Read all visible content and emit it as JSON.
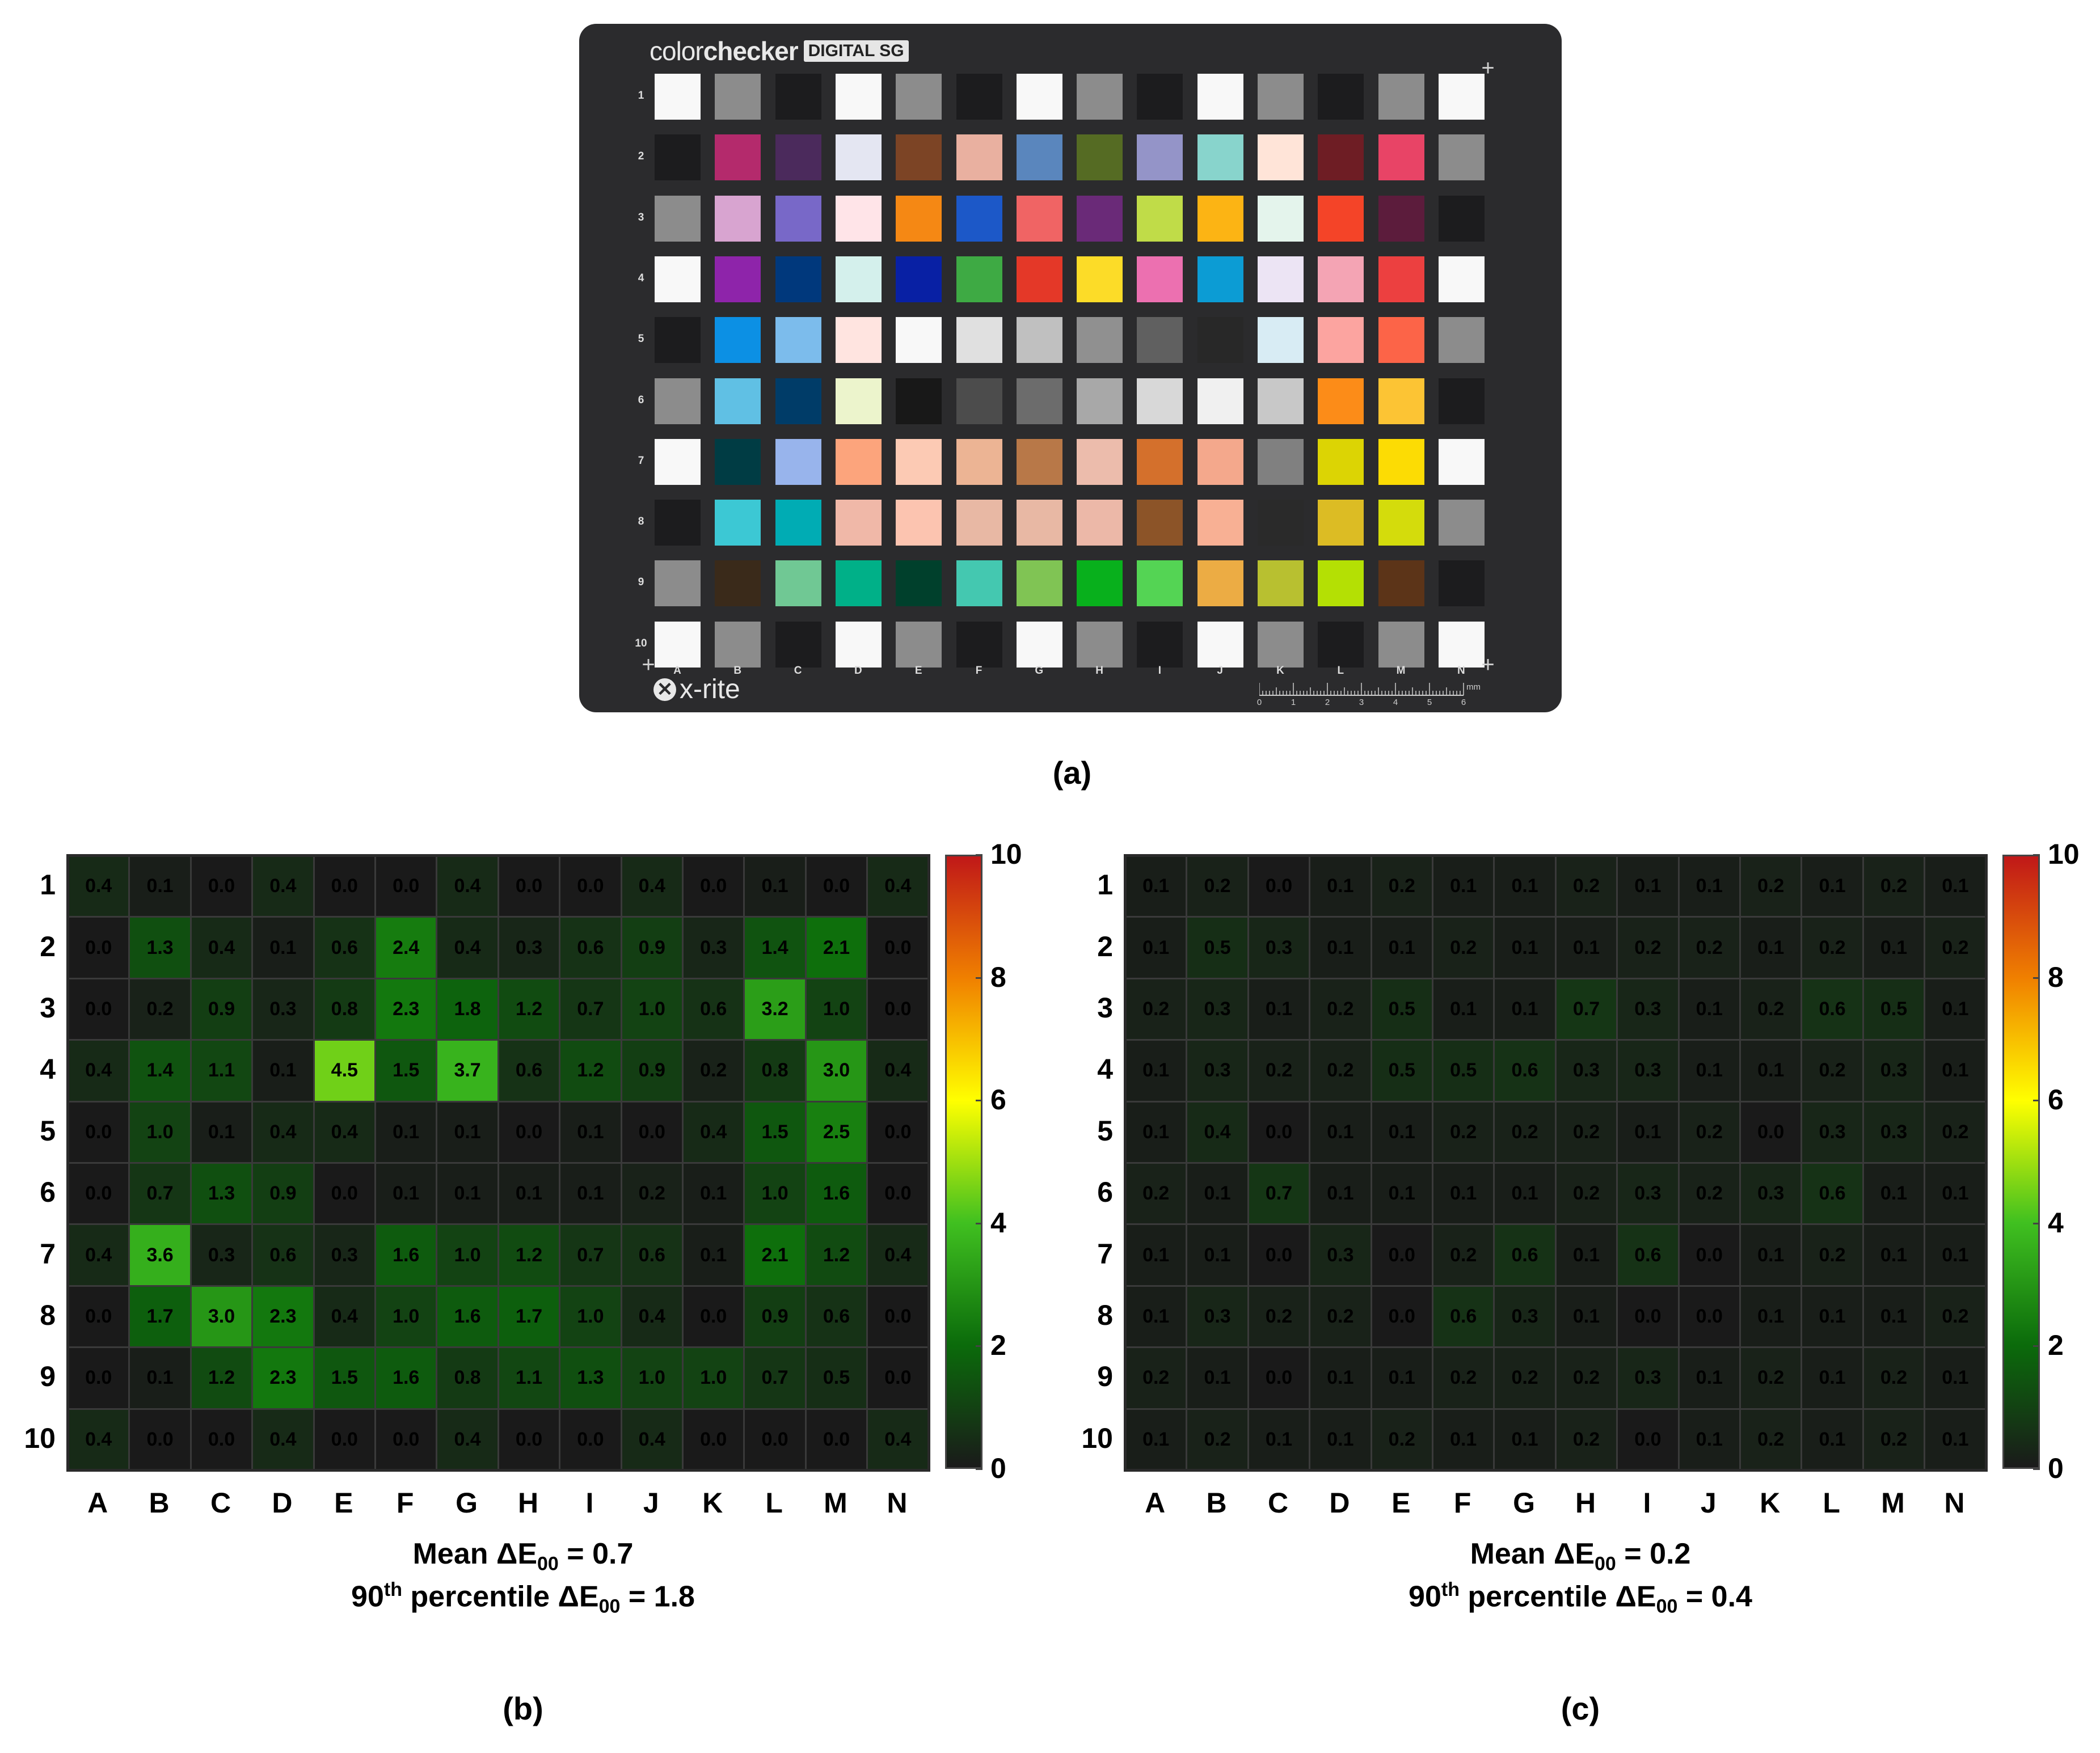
{
  "panel_a": {
    "brand_light": "color",
    "brand_bold": "checker",
    "brand_tag": "DIGITAL SG",
    "maker_logo": "x-rite",
    "row_labels": [
      "1",
      "2",
      "3",
      "4",
      "5",
      "6",
      "7",
      "8",
      "9",
      "10"
    ],
    "col_labels": [
      "A",
      "B",
      "C",
      "D",
      "E",
      "F",
      "G",
      "H",
      "I",
      "J",
      "K",
      "L",
      "M",
      "N"
    ],
    "ruler_labels": [
      "0",
      "1",
      "2",
      "3",
      "4",
      "5",
      "6"
    ],
    "ruler_unit": "mm",
    "patch_colors": [
      [
        "#f8f8f8",
        "#8c8c8c",
        "#1c1c1e",
        "#f8f8f8",
        "#8c8c8c",
        "#1c1c1e",
        "#f8f8f8",
        "#8c8c8c",
        "#1c1c1e",
        "#f8f8f8",
        "#8c8c8c",
        "#1c1c1e",
        "#8c8c8c",
        "#f8f8f8"
      ],
      [
        "#1c1c1e",
        "#b42a6c",
        "#4b2a5c",
        "#e4e6f2",
        "#7c4425",
        "#e9b0a0",
        "#5a86bd",
        "#556b23",
        "#9494c8",
        "#88d4cc",
        "#ffe4d8",
        "#6e1d24",
        "#e84466",
        "#8c8c8c"
      ],
      [
        "#8c8c8c",
        "#d8a4d0",
        "#7868c8",
        "#ffe4e8",
        "#f58814",
        "#1c58c8",
        "#f06464",
        "#6a2a78",
        "#c0dc48",
        "#fcb414",
        "#e4f4ec",
        "#f44428",
        "#5c1c3c",
        "#1c1c1e"
      ],
      [
        "#f8f8f8",
        "#8e24aa",
        "#00387c",
        "#d4f0ec",
        "#0820a4",
        "#3eaa44",
        "#e43828",
        "#fcdc28",
        "#ec70b0",
        "#0c9cd4",
        "#ece4f4",
        "#f4a4b4",
        "#ec4040",
        "#f8f8f8"
      ],
      [
        "#1c1c1e",
        "#0c90e4",
        "#7cbcec",
        "#ffe4e0",
        "#f8f8f8",
        "#e0e0e0",
        "#c0c0c0",
        "#909090",
        "#606060",
        "#282828",
        "#d8ecf4",
        "#fca4a0",
        "#fc6448",
        "#8c8c8c"
      ],
      [
        "#8c8c8c",
        "#60c0e4",
        "#003c68",
        "#ecf4cc",
        "#181818",
        "#4c4c4c",
        "#6c6c6c",
        "#a8a8a8",
        "#d8d8d8",
        "#f0f0f0",
        "#c8c8c8",
        "#fc8c18",
        "#fcc434",
        "#1c1c1e"
      ],
      [
        "#f8f8f8",
        "#003c44",
        "#98b4ec",
        "#fca47c",
        "#fccab4",
        "#ecb494",
        "#b87848",
        "#ecbcac",
        "#d4702c",
        "#f4a88c",
        "#808080",
        "#dcd404",
        "#fcdc04",
        "#f8f8f8"
      ],
      [
        "#1c1c1e",
        "#3cc8d4",
        "#00acb4",
        "#f0b8a8",
        "#fcc4b0",
        "#e8b8a4",
        "#e8b8a4",
        "#ecb8a8",
        "#8c5428",
        "#f8b094",
        "#2a2a2a",
        "#dcbc24",
        "#d4dc0c",
        "#8c8c8c"
      ],
      [
        "#8c8c8c",
        "#3a2a1a",
        "#70c894",
        "#00b088",
        "#00402c",
        "#44c8b0",
        "#80c454",
        "#08b01c",
        "#54d454",
        "#ecac44",
        "#b8c030",
        "#b4e004",
        "#5c3418",
        "#1c1c1e"
      ],
      [
        "#f8f8f8",
        "#8c8c8c",
        "#1c1c1e",
        "#f8f8f8",
        "#8c8c8c",
        "#1c1c1e",
        "#f8f8f8",
        "#8c8c8c",
        "#1c1c1e",
        "#f8f8f8",
        "#8c8c8c",
        "#1c1c1e",
        "#8c8c8c",
        "#f8f8f8"
      ]
    ],
    "caption": "(a)"
  },
  "colorbar": {
    "colors": [
      "#1a1a1a",
      "#0b6b0b",
      "#40c020",
      "#ffff00",
      "#f08000",
      "#c01818"
    ],
    "ticks": [
      "0",
      "2",
      "4",
      "6",
      "8",
      "10"
    ]
  },
  "chart_data": [
    {
      "type": "heatmap",
      "row_labels": [
        "1",
        "2",
        "3",
        "4",
        "5",
        "6",
        "7",
        "8",
        "9",
        "10"
      ],
      "col_labels": [
        "A",
        "B",
        "C",
        "D",
        "E",
        "F",
        "G",
        "H",
        "I",
        "J",
        "K",
        "L",
        "M",
        "N"
      ],
      "zlim": [
        0,
        10
      ],
      "values": [
        [
          0.4,
          0.1,
          0.0,
          0.4,
          0.0,
          0.0,
          0.4,
          0.0,
          0.0,
          0.4,
          0.0,
          0.1,
          0.0,
          0.4
        ],
        [
          0.0,
          1.3,
          0.4,
          0.1,
          0.6,
          2.4,
          0.4,
          0.3,
          0.6,
          0.9,
          0.3,
          1.4,
          2.1,
          0.0
        ],
        [
          0.0,
          0.2,
          0.9,
          0.3,
          0.8,
          2.3,
          1.8,
          1.2,
          0.7,
          1.0,
          0.6,
          3.2,
          1.0,
          0.0
        ],
        [
          0.4,
          1.4,
          1.1,
          0.1,
          4.5,
          1.5,
          3.7,
          0.6,
          1.2,
          0.9,
          0.2,
          0.8,
          3.0,
          0.4
        ],
        [
          0.0,
          1.0,
          0.1,
          0.4,
          0.4,
          0.1,
          0.1,
          0.0,
          0.1,
          0.0,
          0.4,
          1.5,
          2.5,
          0.0
        ],
        [
          0.0,
          0.7,
          1.3,
          0.9,
          0.0,
          0.1,
          0.1,
          0.1,
          0.1,
          0.2,
          0.1,
          1.0,
          1.6,
          0.0
        ],
        [
          0.4,
          3.6,
          0.3,
          0.6,
          0.3,
          1.6,
          1.0,
          1.2,
          0.7,
          0.6,
          0.1,
          2.1,
          1.2,
          0.4
        ],
        [
          0.0,
          1.7,
          3.0,
          2.3,
          0.4,
          1.0,
          1.6,
          1.7,
          1.0,
          0.4,
          0.0,
          0.9,
          0.6,
          0.0
        ],
        [
          0.0,
          0.1,
          1.2,
          2.3,
          1.5,
          1.6,
          0.8,
          1.1,
          1.3,
          1.0,
          1.0,
          0.7,
          0.5,
          0.0
        ],
        [
          0.4,
          0.0,
          0.0,
          0.4,
          0.0,
          0.0,
          0.4,
          0.0,
          0.0,
          0.4,
          0.0,
          0.0,
          0.0,
          0.4
        ]
      ],
      "value_labels": [
        [
          "0.4",
          "0.1",
          "0.0",
          "0.4",
          "0.0",
          "0.0",
          "0.4",
          "0.0",
          "0.0",
          "0.4",
          "0.0",
          "0.1",
          "0.0",
          "0.4"
        ],
        [
          "0.0",
          "1.3",
          "0.4",
          "0.1",
          "0.6",
          "2.4",
          "0.4",
          "0.3",
          "0.6",
          "0.9",
          "0.3",
          "1.4",
          "2.1",
          "0.0"
        ],
        [
          "0.0",
          "0.2",
          "0.9",
          "0.3",
          "0.8",
          "2.3",
          "1.8",
          "1.2",
          "0.7",
          "1.0",
          "0.6",
          "3.2",
          "1.0",
          "0.0"
        ],
        [
          "0.4",
          "1.4",
          "1.1",
          "0.1",
          "4.5",
          "1.5",
          "3.7",
          "0.6",
          "1.2",
          "0.9",
          "0.2",
          "0.8",
          "3.0",
          "0.4"
        ],
        [
          "0.0",
          "1.0",
          "0.1",
          "0.4",
          "0.4",
          "0.1",
          "0.1",
          "0.0",
          "0.1",
          "0.0",
          "0.4",
          "1.5",
          "2.5",
          "0.0"
        ],
        [
          "0.0",
          "0.7",
          "1.3",
          "0.9",
          "0.0",
          "0.1",
          "0.1",
          "0.1",
          "0.1",
          "0.2",
          "0.1",
          "1.0",
          "1.6",
          "0.0"
        ],
        [
          "0.4",
          "3.6",
          "0.3",
          "0.6",
          "0.3",
          "1.6",
          "1.0",
          "1.2",
          "0.7",
          "0.6",
          "0.1",
          "2.1",
          "1.2",
          "0.4"
        ],
        [
          "0.0",
          "1.7",
          "3.0",
          "2.3",
          "0.4",
          "1.0",
          "1.6",
          "1.7",
          "1.0",
          "0.4",
          "0.0",
          "0.9",
          "0.6",
          "0.0"
        ],
        [
          "0.0",
          "0.1",
          "1.2",
          "2.3",
          "1.5",
          "1.6",
          "0.8",
          "1.1",
          "1.3",
          "1.0",
          "1.0",
          "0.7",
          "0.5",
          "0.0"
        ],
        [
          "0.4",
          "0.0",
          "0.0",
          "0.4",
          "0.0",
          "0.0",
          "0.4",
          "0.0",
          "0.0",
          "0.4",
          "0.0",
          "0.0",
          "0.0",
          "0.4"
        ]
      ],
      "mean_prefix": "Mean ΔE",
      "mean_sub": "00",
      "mean_value": " = 0.7",
      "p90_num": "90",
      "p90_sup": "th",
      "p90_prefix": " percentile ΔE",
      "p90_sub": "00",
      "p90_value": " = 1.8",
      "caption": "(b)"
    },
    {
      "type": "heatmap",
      "row_labels": [
        "1",
        "2",
        "3",
        "4",
        "5",
        "6",
        "7",
        "8",
        "9",
        "10"
      ],
      "col_labels": [
        "A",
        "B",
        "C",
        "D",
        "E",
        "F",
        "G",
        "H",
        "I",
        "J",
        "K",
        "L",
        "M",
        "N"
      ],
      "zlim": [
        0,
        10
      ],
      "values": [
        [
          0.1,
          0.2,
          0.0,
          0.1,
          0.2,
          0.1,
          0.1,
          0.2,
          0.1,
          0.1,
          0.2,
          0.1,
          0.2,
          0.1
        ],
        [
          0.1,
          0.5,
          0.3,
          0.1,
          0.1,
          0.2,
          0.1,
          0.1,
          0.2,
          0.2,
          0.1,
          0.2,
          0.1,
          0.2
        ],
        [
          0.2,
          0.3,
          0.1,
          0.2,
          0.5,
          0.1,
          0.1,
          0.7,
          0.3,
          0.1,
          0.2,
          0.6,
          0.5,
          0.1
        ],
        [
          0.1,
          0.3,
          0.2,
          0.2,
          0.5,
          0.5,
          0.6,
          0.3,
          0.3,
          0.1,
          0.1,
          0.2,
          0.3,
          0.1
        ],
        [
          0.1,
          0.4,
          0.0,
          0.1,
          0.1,
          0.2,
          0.2,
          0.2,
          0.1,
          0.2,
          0.0,
          0.3,
          0.3,
          0.2
        ],
        [
          0.2,
          0.1,
          0.7,
          0.1,
          0.1,
          0.1,
          0.1,
          0.2,
          0.3,
          0.2,
          0.3,
          0.6,
          0.1,
          0.1
        ],
        [
          0.1,
          0.1,
          0.0,
          0.3,
          0.0,
          0.2,
          0.6,
          0.1,
          0.6,
          0.0,
          0.1,
          0.2,
          0.1,
          0.1
        ],
        [
          0.1,
          0.3,
          0.2,
          0.2,
          0.0,
          0.6,
          0.3,
          0.1,
          0.0,
          0.0,
          0.1,
          0.1,
          0.1,
          0.2
        ],
        [
          0.2,
          0.1,
          0.0,
          0.1,
          0.1,
          0.2,
          0.2,
          0.2,
          0.3,
          0.1,
          0.2,
          0.1,
          0.2,
          0.1
        ],
        [
          0.1,
          0.2,
          0.1,
          0.1,
          0.2,
          0.1,
          0.1,
          0.2,
          0.0,
          0.1,
          0.2,
          0.1,
          0.2,
          0.1
        ]
      ],
      "value_labels": [
        [
          "0.1",
          "0.2",
          "0.0",
          "0.1",
          "0.2",
          "0.1",
          "0.1",
          "0.2",
          "0.1",
          "0.1",
          "0.2",
          "0.1",
          "0.2",
          "0.1"
        ],
        [
          "0.1",
          "0.5",
          "0.3",
          "0.1",
          "0.1",
          "0.2",
          "0.1",
          "0.1",
          "0.2",
          "0.2",
          "0.1",
          "0.2",
          "0.1",
          "0.2"
        ],
        [
          "0.2",
          "0.3",
          "0.1",
          "0.2",
          "0.5",
          "0.1",
          "0.1",
          "0.7",
          "0.3",
          "0.1",
          "0.2",
          "0.6",
          "0.5",
          "0.1"
        ],
        [
          "0.1",
          "0.3",
          "0.2",
          "0.2",
          "0.5",
          "0.5",
          "0.6",
          "0.3",
          "0.3",
          "0.1",
          "0.1",
          "0.2",
          "0.3",
          "0.1"
        ],
        [
          "0.1",
          "0.4",
          "0.0",
          "0.1",
          "0.1",
          "0.2",
          "0.2",
          "0.2",
          "0.1",
          "0.2",
          "0.0",
          "0.3",
          "0.3",
          "0.2"
        ],
        [
          "0.2",
          "0.1",
          "0.7",
          "0.1",
          "0.1",
          "0.1",
          "0.1",
          "0.2",
          "0.3",
          "0.2",
          "0.3",
          "0.6",
          "0.1",
          "0.1"
        ],
        [
          "0.1",
          "0.1",
          "0.0",
          "0.3",
          "0.0",
          "0.2",
          "0.6",
          "0.1",
          "0.6",
          "0.0",
          "0.1",
          "0.2",
          "0.1",
          "0.1"
        ],
        [
          "0.1",
          "0.3",
          "0.2",
          "0.2",
          "0.0",
          "0.6",
          "0.3",
          "0.1",
          "0.0",
          "0.0",
          "0.1",
          "0.1",
          "0.1",
          "0.2"
        ],
        [
          "0.2",
          "0.1",
          "0.0",
          "0.1",
          "0.1",
          "0.2",
          "0.2",
          "0.2",
          "0.3",
          "0.1",
          "0.2",
          "0.1",
          "0.2",
          "0.1"
        ],
        [
          "0.1",
          "0.2",
          "0.1",
          "0.1",
          "0.2",
          "0.1",
          "0.1",
          "0.2",
          "0.0",
          "0.1",
          "0.2",
          "0.1",
          "0.2",
          "0.1"
        ]
      ],
      "mean_prefix": "Mean ΔE",
      "mean_sub": "00",
      "mean_value": " = 0.2",
      "p90_num": "90",
      "p90_sup": "th",
      "p90_prefix": " percentile ΔE",
      "p90_sub": "00",
      "p90_value": " = 0.4",
      "caption": "(c)"
    }
  ]
}
